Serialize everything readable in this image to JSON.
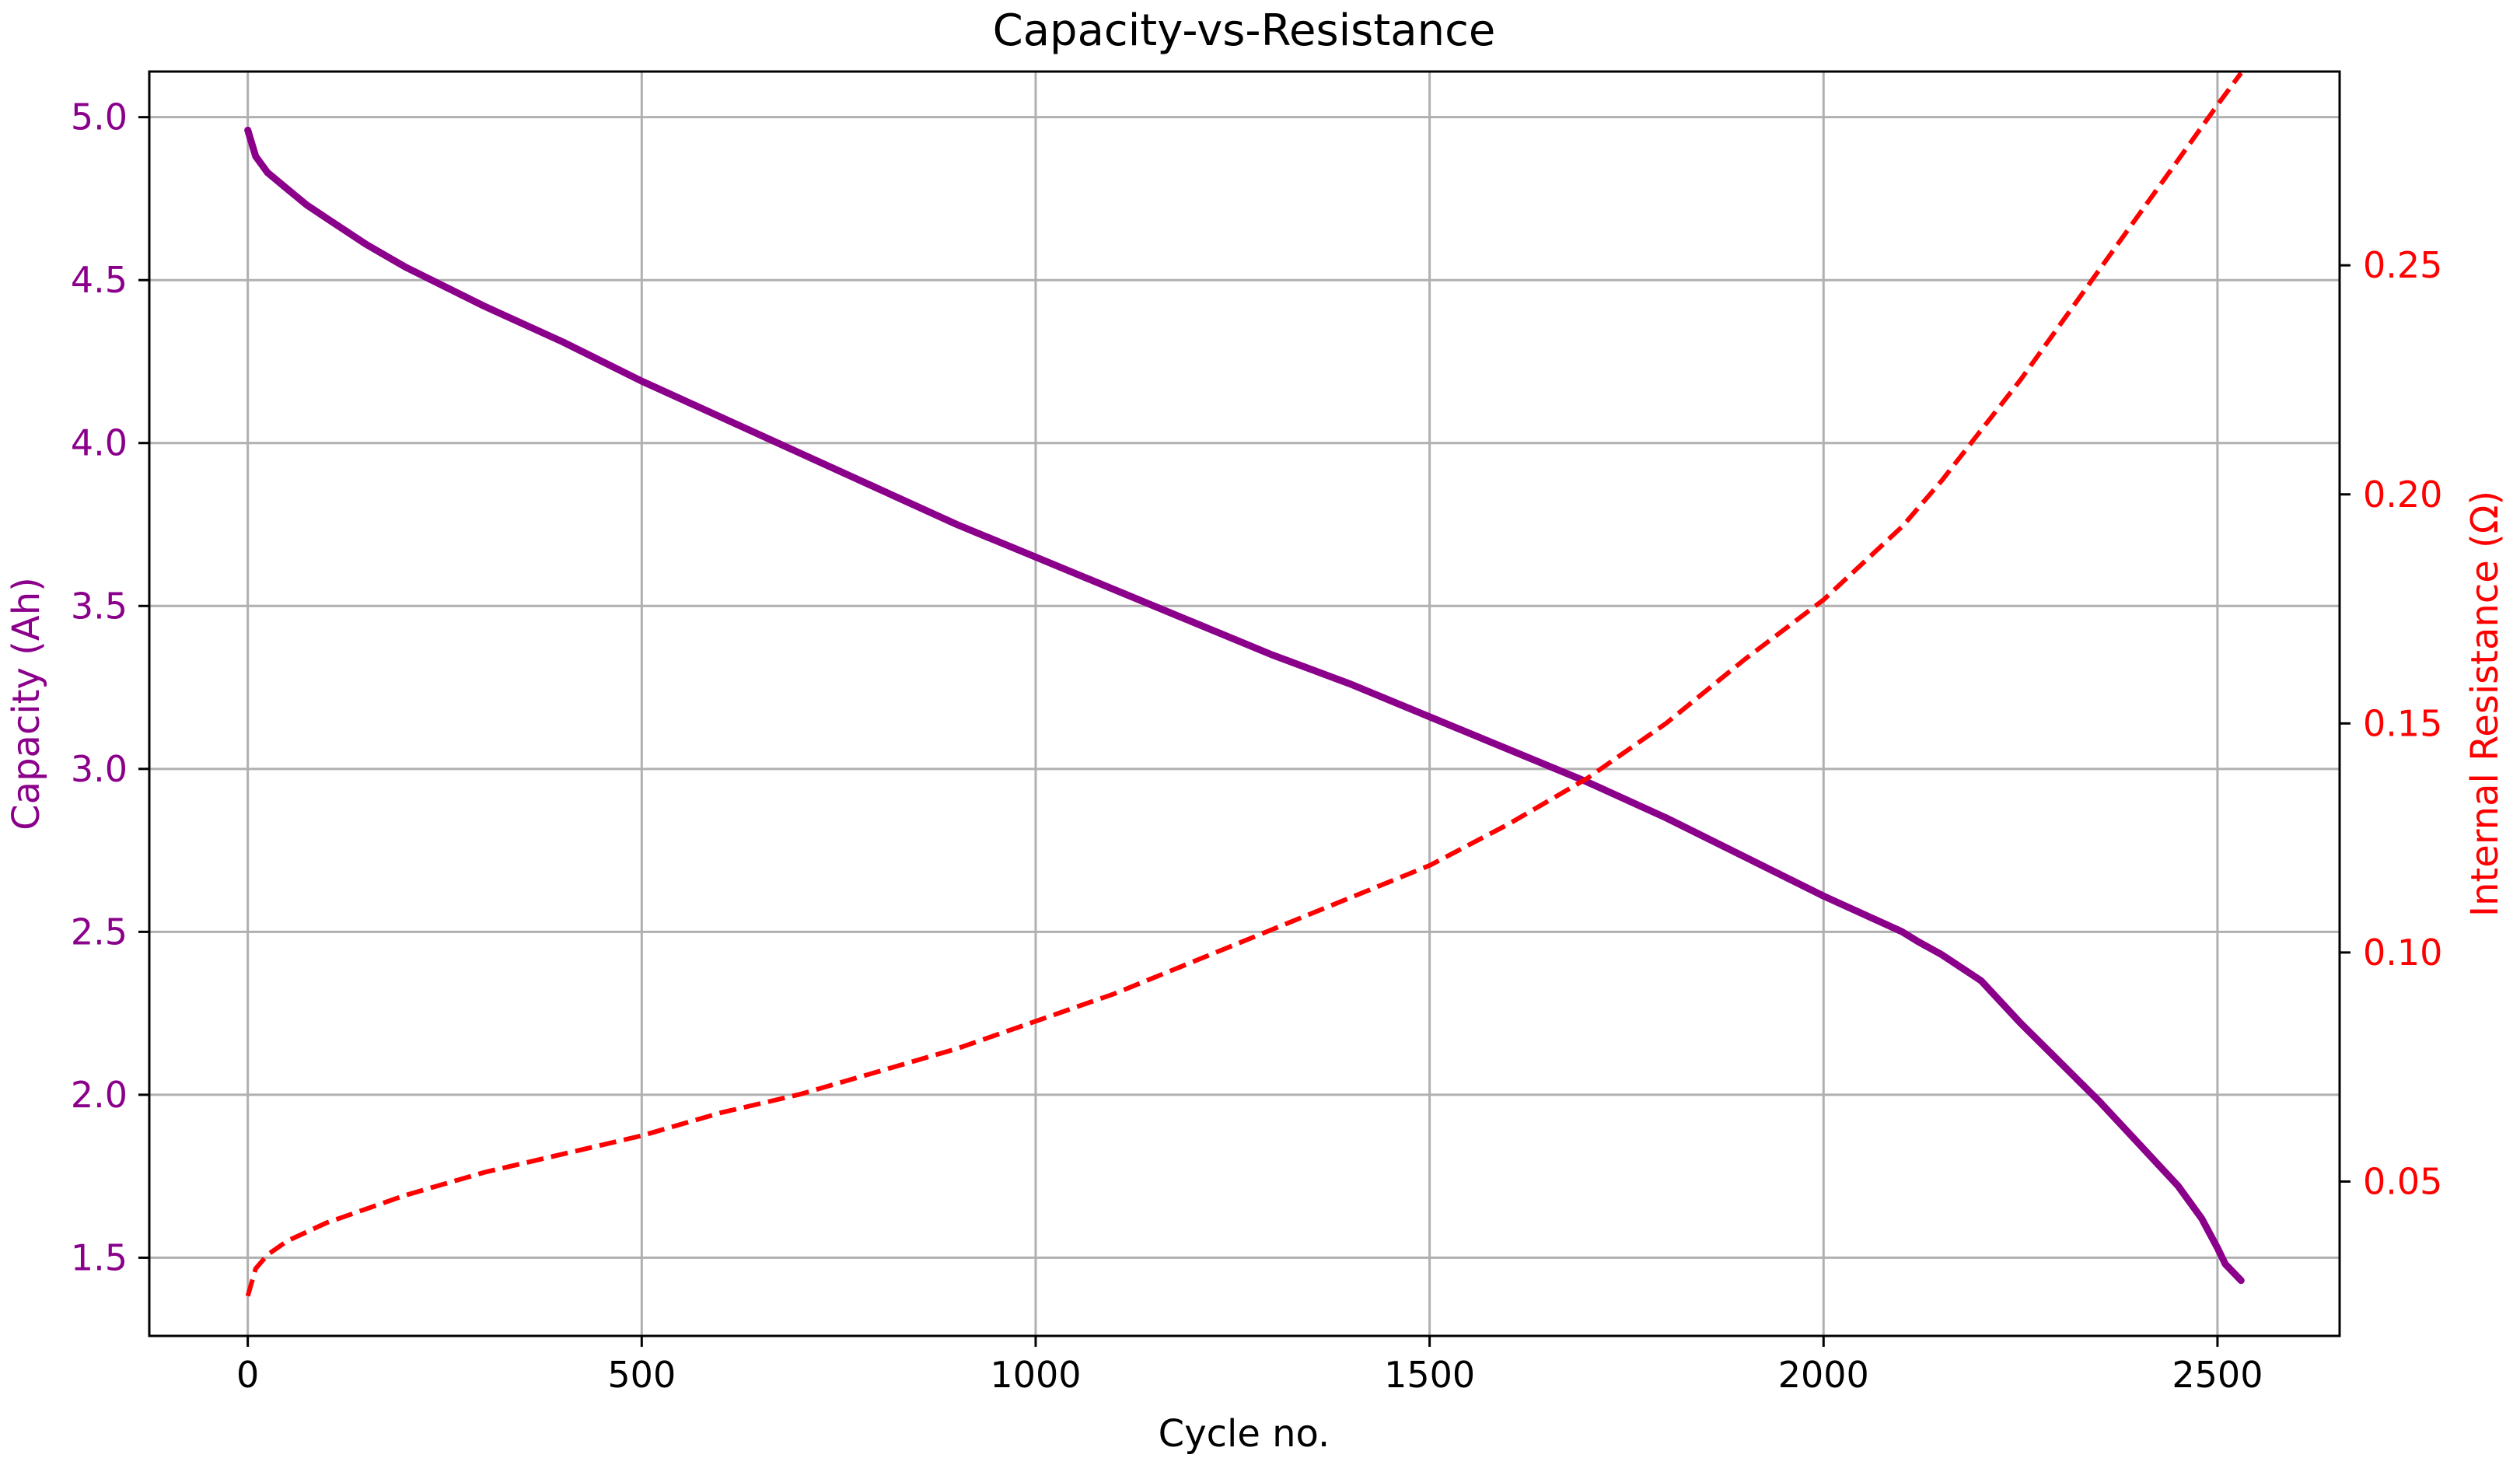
{
  "chart_data": {
    "type": "line",
    "title": "Capacity-vs-Resistance",
    "xlabel": "Cycle no.",
    "xlim": [
      -125,
      2655
    ],
    "xticks": [
      0,
      500,
      1000,
      1500,
      2000,
      2500
    ],
    "xtick_labels": [
      "0",
      "500",
      "1000",
      "1500",
      "2000",
      "2500"
    ],
    "grid": true,
    "y_left": {
      "label": "Capacity (Ah)",
      "color": "#8B008B",
      "lim": [
        1.26,
        5.14
      ],
      "ticks": [
        1.5,
        2.0,
        2.5,
        3.0,
        3.5,
        4.0,
        4.5,
        5.0
      ],
      "tick_labels": [
        "1.5",
        "2.0",
        "2.5",
        "3.0",
        "3.5",
        "4.0",
        "4.5",
        "5.0"
      ]
    },
    "y_right": {
      "label": "Internal Resistance (Ω)",
      "color": "#FF0000",
      "lim": [
        0.0163,
        0.2923
      ],
      "ticks": [
        0.05,
        0.1,
        0.15,
        0.2,
        0.25
      ],
      "tick_labels": [
        "0.05",
        "0.10",
        "0.15",
        "0.20",
        "0.25"
      ]
    },
    "series": [
      {
        "name": "Capacity",
        "axis": "left",
        "color": "#8B008B",
        "style": "solid",
        "x": [
          0,
          10,
          25,
          50,
          75,
          100,
          150,
          200,
          300,
          400,
          500,
          600,
          700,
          800,
          900,
          1000,
          1100,
          1200,
          1300,
          1400,
          1500,
          1600,
          1700,
          1800,
          1900,
          2000,
          2100,
          2120,
          2150,
          2200,
          2250,
          2300,
          2350,
          2400,
          2450,
          2480,
          2500,
          2510,
          2530
        ],
        "values": [
          4.96,
          4.88,
          4.83,
          4.78,
          4.73,
          4.69,
          4.61,
          4.54,
          4.42,
          4.31,
          4.19,
          4.08,
          3.97,
          3.86,
          3.75,
          3.65,
          3.55,
          3.45,
          3.35,
          3.26,
          3.16,
          3.06,
          2.96,
          2.85,
          2.73,
          2.61,
          2.5,
          2.47,
          2.43,
          2.35,
          2.22,
          2.1,
          1.98,
          1.85,
          1.72,
          1.62,
          1.53,
          1.48,
          1.43
        ]
      },
      {
        "name": "Internal Resistance",
        "axis": "right",
        "color": "#FF0000",
        "style": "dashed",
        "x": [
          0,
          10,
          25,
          50,
          100,
          150,
          200,
          300,
          400,
          500,
          600,
          700,
          800,
          900,
          1000,
          1100,
          1200,
          1300,
          1400,
          1500,
          1600,
          1700,
          1800,
          1900,
          2000,
          2100,
          2150,
          2200,
          2250,
          2300,
          2350,
          2400,
          2450,
          2500,
          2530
        ],
        "values": [
          0.025,
          0.031,
          0.034,
          0.037,
          0.041,
          0.044,
          0.047,
          0.052,
          0.056,
          0.06,
          0.065,
          0.069,
          0.074,
          0.079,
          0.085,
          0.091,
          0.098,
          0.105,
          0.112,
          0.119,
          0.128,
          0.138,
          0.15,
          0.164,
          0.177,
          0.193,
          0.203,
          0.214,
          0.225,
          0.237,
          0.249,
          0.261,
          0.273,
          0.285,
          0.292
        ]
      }
    ]
  }
}
